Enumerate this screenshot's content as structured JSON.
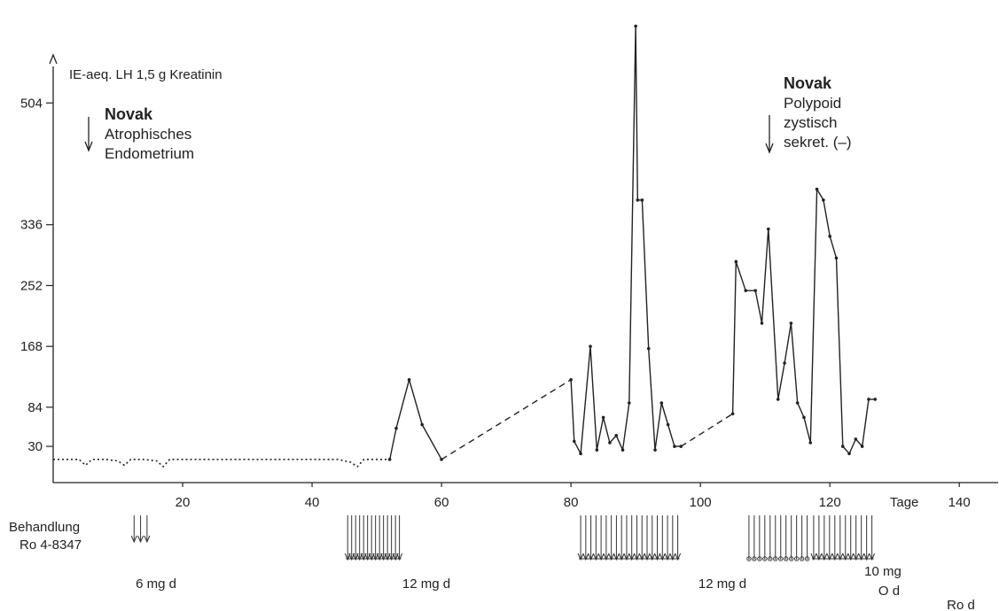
{
  "chart_data": {
    "type": "line",
    "title": "",
    "ylabel": "IE-aeq. LH 1,5 g Kreatinin",
    "xlabel": "Tage",
    "xlim": [
      0,
      146
    ],
    "ylim": [
      -20,
      640
    ],
    "y_ticks": [
      30,
      84,
      168,
      252,
      336,
      504
    ],
    "y_tick_labels": [
      "30",
      "84",
      "168",
      "252",
      "336",
      "504"
    ],
    "x_ticks": [
      20,
      40,
      60,
      80,
      100,
      120,
      140
    ],
    "x_tick_labels": [
      "20",
      "40",
      "60",
      "80",
      "100",
      "120",
      "140"
    ],
    "x_unit_label": "Tage",
    "grid": false,
    "series": [
      {
        "line_style": "dotted",
        "x": [
          0,
          2,
          4,
          5,
          6,
          8,
          10,
          11,
          12,
          14,
          16,
          17,
          18,
          20,
          24,
          28,
          32,
          36,
          40,
          44,
          46,
          47,
          48,
          50,
          52
        ],
        "y": [
          12,
          12,
          12,
          4,
          12,
          12,
          10,
          4,
          12,
          12,
          10,
          2,
          12,
          12,
          12,
          12,
          12,
          12,
          12,
          12,
          8,
          2,
          12,
          12,
          12
        ]
      },
      {
        "line_style": "solid",
        "x": [
          52,
          53,
          55,
          57,
          60
        ],
        "y": [
          12,
          55,
          122,
          60,
          12
        ]
      },
      {
        "line_style": "dashed",
        "x": [
          60,
          80
        ],
        "y": [
          12,
          122
        ]
      },
      {
        "line_style": "solid",
        "x": [
          80,
          80.5,
          81.5,
          83,
          84,
          85,
          86,
          87,
          88,
          89,
          90,
          90.3,
          91,
          92,
          93,
          94,
          95,
          96,
          97
        ],
        "y": [
          122,
          37,
          20,
          168,
          25,
          70,
          35,
          45,
          25,
          90,
          610,
          370,
          370,
          165,
          25,
          90,
          60,
          30,
          30
        ]
      },
      {
        "line_style": "dashed",
        "x": [
          97,
          105
        ],
        "y": [
          30,
          75
        ]
      },
      {
        "line_style": "solid",
        "x": [
          105,
          105.5,
          107,
          108.5,
          109.5,
          110.5,
          112,
          113,
          114,
          115,
          116,
          117,
          118,
          119,
          120,
          121,
          122,
          123,
          124,
          125,
          126,
          127
        ],
        "y": [
          75,
          285,
          245,
          245,
          200,
          330,
          95,
          145,
          200,
          90,
          70,
          35,
          385,
          370,
          320,
          290,
          30,
          20,
          40,
          30,
          95,
          95
        ]
      }
    ],
    "annotations": [
      {
        "bold": "Novak",
        "lines": [
          "Atrophisches",
          "Endometrium"
        ]
      },
      {
        "bold": "Novak",
        "lines": [
          "Polypoid",
          "zystisch",
          "sekret. (–)"
        ]
      }
    ],
    "treatment": {
      "label_lines": [
        "Behandlung",
        "Ro 4-8347"
      ],
      "blocks": [
        {
          "x_start": 12.5,
          "x_end": 14.5,
          "count": 3,
          "dose": "6 mg d"
        },
        {
          "x_start": 45.5,
          "x_end": 53.5,
          "count": 14,
          "dose": "12 mg d"
        },
        {
          "x_start": 81.5,
          "x_end": 96.5,
          "count": 20,
          "dose": "12 mg d"
        },
        {
          "x_start": 107.5,
          "x_end": 116.5,
          "count": 12,
          "dose": "10 mg",
          "dose2": "O d",
          "circles": true
        },
        {
          "x_start": 117.5,
          "x_end": 126.5,
          "count": 12,
          "dose": "Ro d"
        }
      ]
    }
  }
}
